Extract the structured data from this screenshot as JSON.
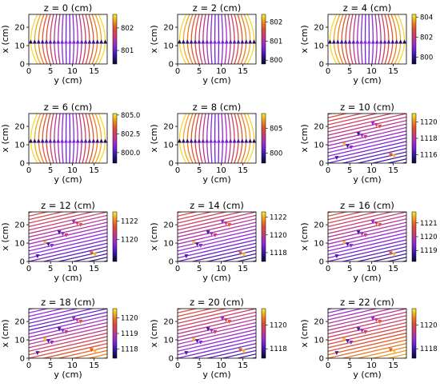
{
  "chart_data": [
    {
      "type": "heatmap",
      "title": "z = 0 (cm)",
      "xlabel": "y (cm)",
      "ylabel": "x (cm)",
      "xlim": [
        0,
        18
      ],
      "ylim": [
        0,
        27
      ],
      "xticks": [
        0,
        5,
        10,
        15
      ],
      "yticks": [
        0,
        10,
        20
      ],
      "colorbar": {
        "ticks": [
          801,
          802
        ],
        "range": [
          800.4,
          802.6
        ]
      },
      "field_pattern": "vertical"
    },
    {
      "type": "heatmap",
      "title": "z = 2 (cm)",
      "xlabel": "y (cm)",
      "ylabel": "x (cm)",
      "xlim": [
        0,
        18
      ],
      "ylim": [
        0,
        27
      ],
      "xticks": [
        0,
        5,
        10,
        15
      ],
      "yticks": [
        0,
        10,
        20
      ],
      "colorbar": {
        "ticks": [
          800,
          801,
          802
        ],
        "range": [
          799.8,
          802.4
        ]
      },
      "field_pattern": "vertical"
    },
    {
      "type": "heatmap",
      "title": "z = 4 (cm)",
      "xlabel": "y (cm)",
      "ylabel": "x (cm)",
      "xlim": [
        0,
        18
      ],
      "ylim": [
        0,
        27
      ],
      "xticks": [
        0,
        5,
        10,
        15
      ],
      "yticks": [
        0,
        10,
        20
      ],
      "colorbar": {
        "ticks": [
          800,
          802,
          804
        ],
        "range": [
          799.3,
          804.3
        ]
      },
      "field_pattern": "vertical"
    },
    {
      "type": "heatmap",
      "title": "z = 6 (cm)",
      "xlabel": "y (cm)",
      "ylabel": "x (cm)",
      "xlim": [
        0,
        18
      ],
      "ylim": [
        0,
        27
      ],
      "xticks": [
        0,
        5,
        10,
        15
      ],
      "yticks": [
        0,
        10,
        20
      ],
      "colorbar": {
        "ticks": [
          "800.0",
          "802.5",
          "805.0"
        ],
        "range": [
          798.6,
          805.2
        ]
      },
      "field_pattern": "vertical"
    },
    {
      "type": "heatmap",
      "title": "z = 8 (cm)",
      "xlabel": "y (cm)",
      "ylabel": "x (cm)",
      "xlim": [
        0,
        18
      ],
      "ylim": [
        0,
        27
      ],
      "xticks": [
        0,
        5,
        10,
        15
      ],
      "yticks": [
        0,
        10,
        20
      ],
      "colorbar": {
        "ticks": [
          800,
          805
        ],
        "range": [
          798.0,
          808.0
        ]
      },
      "field_pattern": "vertical"
    },
    {
      "type": "heatmap",
      "title": "z = 10 (cm)",
      "xlabel": "y (cm)",
      "ylabel": "x (cm)",
      "xlim": [
        0,
        18
      ],
      "ylim": [
        0,
        27
      ],
      "xticks": [
        0,
        5,
        10,
        15
      ],
      "yticks": [
        0,
        10,
        20
      ],
      "colorbar": {
        "ticks": [
          1116,
          1118,
          1120
        ],
        "range": [
          1115.0,
          1121.0
        ]
      },
      "field_pattern": "diagonal-hot-top"
    },
    {
      "type": "heatmap",
      "title": "z = 12 (cm)",
      "xlabel": "y (cm)",
      "ylabel": "x (cm)",
      "xlim": [
        0,
        18
      ],
      "ylim": [
        0,
        27
      ],
      "xticks": [
        0,
        5,
        10,
        15
      ],
      "yticks": [
        0,
        10,
        20
      ],
      "colorbar": {
        "ticks": [
          1120,
          1122
        ],
        "range": [
          1117.6,
          1123.0
        ]
      },
      "field_pattern": "diagonal-hot-top"
    },
    {
      "type": "heatmap",
      "title": "z = 14 (cm)",
      "xlabel": "y (cm)",
      "ylabel": "x (cm)",
      "xlim": [
        0,
        18
      ],
      "ylim": [
        0,
        27
      ],
      "xticks": [
        0,
        5,
        10,
        15
      ],
      "yticks": [
        0,
        10,
        20
      ],
      "colorbar": {
        "ticks": [
          1118,
          1120,
          1122
        ],
        "range": [
          1117.0,
          1122.6
        ]
      },
      "field_pattern": "diagonal-hot-top"
    },
    {
      "type": "heatmap",
      "title": "z = 16 (cm)",
      "xlabel": "y (cm)",
      "ylabel": "x (cm)",
      "xlim": [
        0,
        18
      ],
      "ylim": [
        0,
        27
      ],
      "xticks": [
        0,
        5,
        10,
        15
      ],
      "yticks": [
        0,
        10,
        20
      ],
      "colorbar": {
        "ticks": [
          1119,
          1120,
          1121
        ],
        "range": [
          1118.2,
          1121.8
        ]
      },
      "field_pattern": "diagonal-hot-top"
    },
    {
      "type": "heatmap",
      "title": "z = 18 (cm)",
      "xlabel": "y (cm)",
      "ylabel": "x (cm)",
      "xlim": [
        0,
        18
      ],
      "ylim": [
        0,
        27
      ],
      "xticks": [
        0,
        5,
        10,
        15
      ],
      "yticks": [
        0,
        10,
        20
      ],
      "colorbar": {
        "ticks": [
          1118,
          1119,
          1120
        ],
        "range": [
          1117.4,
          1120.6
        ]
      },
      "field_pattern": "diagonal-mixed"
    },
    {
      "type": "heatmap",
      "title": "z = 20 (cm)",
      "xlabel": "y (cm)",
      "ylabel": "x (cm)",
      "xlim": [
        0,
        18
      ],
      "ylim": [
        0,
        27
      ],
      "xticks": [
        0,
        5,
        10,
        15
      ],
      "yticks": [
        0,
        10,
        20
      ],
      "colorbar": {
        "ticks": [
          1118,
          1120
        ],
        "range": [
          1117.2,
          1121.4
        ]
      },
      "field_pattern": "diagonal-cool-bottom"
    },
    {
      "type": "heatmap",
      "title": "z = 22 (cm)",
      "xlabel": "y (cm)",
      "ylabel": "x (cm)",
      "xlim": [
        0,
        18
      ],
      "ylim": [
        0,
        27
      ],
      "xticks": [
        0,
        5,
        10,
        15
      ],
      "yticks": [
        0,
        10,
        20
      ],
      "colorbar": {
        "ticks": [
          1118,
          1120
        ],
        "range": [
          1117.2,
          1121.4
        ]
      },
      "field_pattern": "diagonal-hot-bottom"
    }
  ]
}
